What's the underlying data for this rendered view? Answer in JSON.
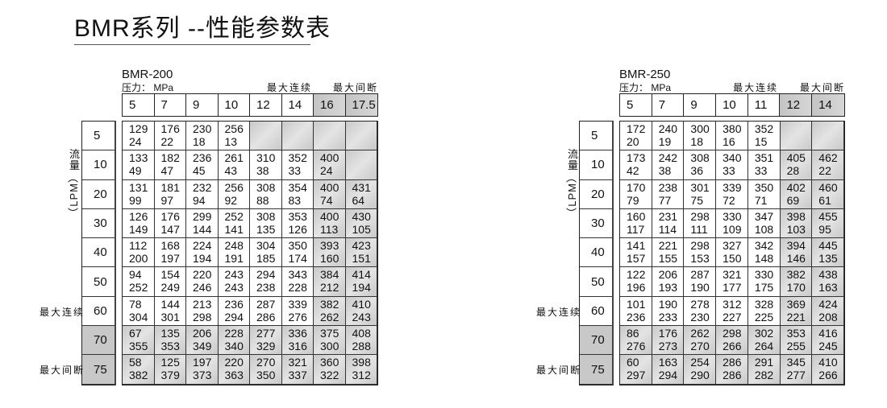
{
  "title": "BMR系列 --性能参数表",
  "common": {
    "pressure_label": "压力： MPa",
    "max_continuous": "最大连续",
    "max_intermittent": "最大间断",
    "flow_label_cn": "流量",
    "flow_label_unit": "（LPM）",
    "shade_color": "#c8c8c8"
  },
  "tables": [
    {
      "model": "BMR-200",
      "pressures": [
        "5",
        "7",
        "9",
        "10",
        "12",
        "14",
        "16",
        "17.5"
      ],
      "shaded_pressure_from": 6,
      "flows": [
        "5",
        "10",
        "20",
        "30",
        "40",
        "50",
        "60",
        "70",
        "75"
      ],
      "shaded_flow_from": 7,
      "max_continuous_row": 6,
      "max_intermittent_row": 8,
      "cells": [
        [
          [
            "129",
            "24"
          ],
          [
            "176",
            "22"
          ],
          [
            "230",
            "18"
          ],
          [
            "256",
            "13"
          ],
          null,
          null,
          null,
          null
        ],
        [
          [
            "133",
            "49"
          ],
          [
            "182",
            "47"
          ],
          [
            "236",
            "45"
          ],
          [
            "261",
            "43"
          ],
          [
            "310",
            "38"
          ],
          [
            "352",
            "33"
          ],
          [
            "400",
            "24"
          ],
          null
        ],
        [
          [
            "131",
            "99"
          ],
          [
            "181",
            "97"
          ],
          [
            "232",
            "94"
          ],
          [
            "256",
            "92"
          ],
          [
            "308",
            "88"
          ],
          [
            "354",
            "83"
          ],
          [
            "400",
            "74"
          ],
          [
            "431",
            "64"
          ]
        ],
        [
          [
            "126",
            "149"
          ],
          [
            "176",
            "147"
          ],
          [
            "299",
            "144"
          ],
          [
            "252",
            "141"
          ],
          [
            "308",
            "135"
          ],
          [
            "353",
            "126"
          ],
          [
            "400",
            "113"
          ],
          [
            "430",
            "105"
          ]
        ],
        [
          [
            "112",
            "200"
          ],
          [
            "168",
            "197"
          ],
          [
            "224",
            "194"
          ],
          [
            "248",
            "191"
          ],
          [
            "304",
            "185"
          ],
          [
            "350",
            "174"
          ],
          [
            "393",
            "160"
          ],
          [
            "423",
            "151"
          ]
        ],
        [
          [
            "94",
            "252"
          ],
          [
            "154",
            "249"
          ],
          [
            "220",
            "246"
          ],
          [
            "243",
            "243"
          ],
          [
            "294",
            "238"
          ],
          [
            "343",
            "228"
          ],
          [
            "384",
            "212"
          ],
          [
            "414",
            "194"
          ]
        ],
        [
          [
            "78",
            "304"
          ],
          [
            "144",
            "301"
          ],
          [
            "213",
            "298"
          ],
          [
            "236",
            "294"
          ],
          [
            "287",
            "286"
          ],
          [
            "339",
            "276"
          ],
          [
            "382",
            "262"
          ],
          [
            "410",
            "243"
          ]
        ],
        [
          [
            "67",
            "355"
          ],
          [
            "135",
            "353"
          ],
          [
            "206",
            "349"
          ],
          [
            "228",
            "340"
          ],
          [
            "277",
            "329"
          ],
          [
            "336",
            "316"
          ],
          [
            "375",
            "300"
          ],
          [
            "408",
            "288"
          ]
        ],
        [
          [
            "58",
            "382"
          ],
          [
            "125",
            "379"
          ],
          [
            "197",
            "373"
          ],
          [
            "220",
            "363"
          ],
          [
            "270",
            "350"
          ],
          [
            "321",
            "337"
          ],
          [
            "360",
            "322"
          ],
          [
            "398",
            "312"
          ]
        ]
      ]
    },
    {
      "model": "BMR-250",
      "pressures": [
        "5",
        "7",
        "9",
        "10",
        "11",
        "12",
        "14"
      ],
      "shaded_pressure_from": 5,
      "flows": [
        "5",
        "10",
        "20",
        "30",
        "40",
        "50",
        "60",
        "70",
        "75"
      ],
      "shaded_flow_from": 7,
      "max_continuous_row": 6,
      "max_intermittent_row": 8,
      "cells": [
        [
          [
            "172",
            "20"
          ],
          [
            "240",
            "19"
          ],
          [
            "300",
            "18"
          ],
          [
            "380",
            "16"
          ],
          [
            "352",
            "15"
          ],
          null,
          null
        ],
        [
          [
            "173",
            "42"
          ],
          [
            "242",
            "38"
          ],
          [
            "308",
            "36"
          ],
          [
            "340",
            "33"
          ],
          [
            "351",
            "33"
          ],
          [
            "405",
            "28"
          ],
          [
            "462",
            "22"
          ]
        ],
        [
          [
            "170",
            "79"
          ],
          [
            "238",
            "77"
          ],
          [
            "301",
            "75"
          ],
          [
            "339",
            "72"
          ],
          [
            "350",
            "71"
          ],
          [
            "402",
            "69"
          ],
          [
            "460",
            "61"
          ]
        ],
        [
          [
            "160",
            "117"
          ],
          [
            "231",
            "114"
          ],
          [
            "298",
            "111"
          ],
          [
            "330",
            "109"
          ],
          [
            "347",
            "108"
          ],
          [
            "398",
            "103"
          ],
          [
            "455",
            "95"
          ]
        ],
        [
          [
            "141",
            "157"
          ],
          [
            "221",
            "155"
          ],
          [
            "298",
            "153"
          ],
          [
            "327",
            "150"
          ],
          [
            "342",
            "148"
          ],
          [
            "394",
            "146"
          ],
          [
            "445",
            "135"
          ]
        ],
        [
          [
            "122",
            "196"
          ],
          [
            "206",
            "193"
          ],
          [
            "287",
            "190"
          ],
          [
            "321",
            "177"
          ],
          [
            "330",
            "175"
          ],
          [
            "382",
            "170"
          ],
          [
            "438",
            "163"
          ]
        ],
        [
          [
            "101",
            "236"
          ],
          [
            "190",
            "233"
          ],
          [
            "278",
            "230"
          ],
          [
            "312",
            "227"
          ],
          [
            "328",
            "225"
          ],
          [
            "369",
            "221"
          ],
          [
            "424",
            "208"
          ]
        ],
        [
          [
            "86",
            "276"
          ],
          [
            "176",
            "273"
          ],
          [
            "262",
            "270"
          ],
          [
            "298",
            "266"
          ],
          [
            "302",
            "264"
          ],
          [
            "353",
            "255"
          ],
          [
            "416",
            "245"
          ]
        ],
        [
          [
            "60",
            "297"
          ],
          [
            "163",
            "294"
          ],
          [
            "254",
            "290"
          ],
          [
            "286",
            "286"
          ],
          [
            "291",
            "282"
          ],
          [
            "345",
            "277"
          ],
          [
            "410",
            "266"
          ]
        ]
      ]
    }
  ]
}
